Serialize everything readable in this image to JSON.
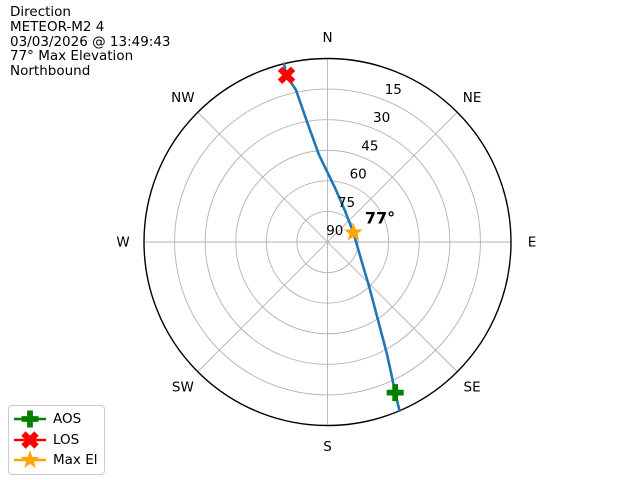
{
  "header": {
    "title": "Direction",
    "satellite": "METEOR-M2 4",
    "timestamp": "03/03/2026 @ 13:49:43",
    "max_elevation": "77° Max Elevation",
    "heading": "Northbound"
  },
  "chart_data": {
    "type": "polar",
    "title": "Direction",
    "projection": "azimuth-elevation skyplot, zenith 90 at center, horizon 0 at edge",
    "compass_labels": [
      "N",
      "NE",
      "E",
      "SE",
      "S",
      "SW",
      "W",
      "NW"
    ],
    "elevation_ticks": [
      15,
      30,
      45,
      60,
      75,
      90
    ],
    "elevation_range": [
      0,
      90
    ],
    "tick_label_azimuth_deg": 22.5,
    "grid": true,
    "track": {
      "name": "satellite-pass-track",
      "color": "#1f77b4",
      "points_az_el": [
        [
          346.3,
          0
        ],
        [
          346.2,
          5.8
        ],
        [
          348.3,
          14
        ],
        [
          350.3,
          30
        ],
        [
          354.4,
          47
        ],
        [
          9.0,
          64
        ],
        [
          29.4,
          72.5
        ],
        [
          70.2,
          76.5
        ],
        [
          116.9,
          71.6
        ],
        [
          137.0,
          60
        ],
        [
          147.1,
          44.4
        ],
        [
          152.0,
          28.1
        ],
        [
          154.1,
          18.6
        ],
        [
          155.8,
          9
        ],
        [
          156.9,
          0
        ]
      ]
    },
    "markers": [
      {
        "name": "aos",
        "az": 155.8,
        "el": 9.0,
        "shape": "plus",
        "color": "#008000"
      },
      {
        "name": "los",
        "az": 346.2,
        "el": 5.8,
        "shape": "x",
        "color": "#ff0000"
      },
      {
        "name": "max-el",
        "az": 70.2,
        "el": 76.5,
        "shape": "star",
        "color": "#ffa500",
        "annotation": "77°"
      }
    ],
    "colors": {
      "grid": "#b3b3b3",
      "outline": "#000000",
      "background": "#ffffff"
    }
  },
  "legend": {
    "items": [
      {
        "label": "AOS",
        "marker": "plus",
        "color": "#008000"
      },
      {
        "label": "LOS",
        "marker": "x",
        "color": "#ff0000"
      },
      {
        "label": "Max El",
        "marker": "star",
        "color": "#ffa500"
      }
    ]
  }
}
